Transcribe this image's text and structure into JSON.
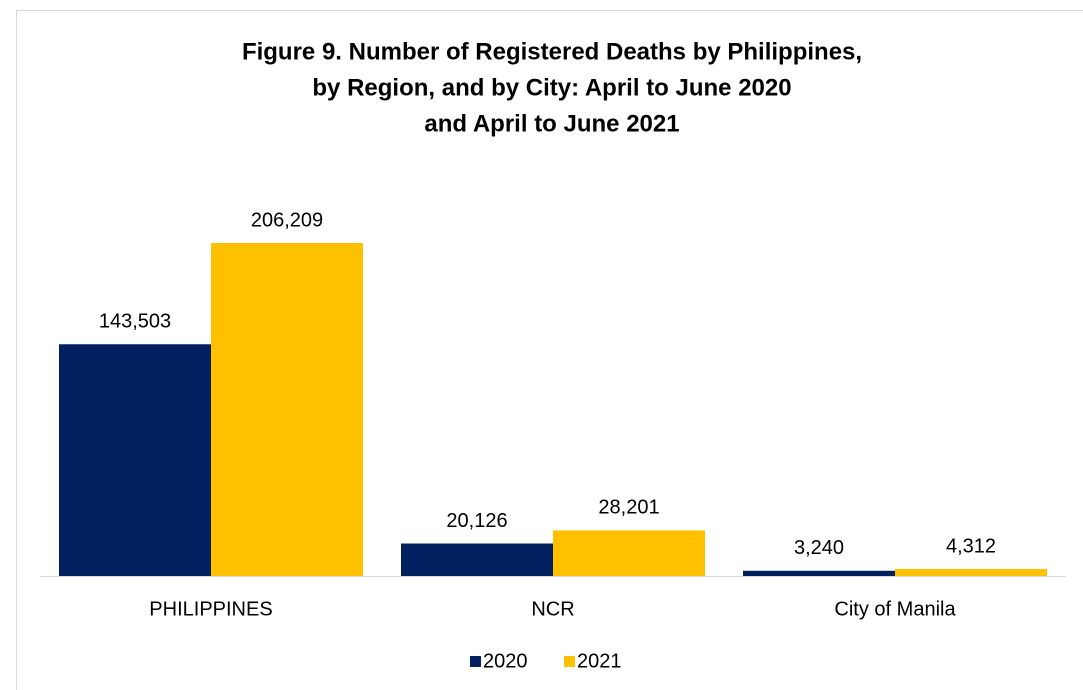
{
  "chart_data": {
    "type": "bar",
    "title": [
      "Figure 9. Number of Registered Deaths by Philippines,",
      "by Region, and by City: April to June 2020",
      "and April to June 2021"
    ],
    "categories": [
      "PHILIPPINES",
      "NCR",
      "City of Manila"
    ],
    "series": [
      {
        "name": "2020",
        "color": "#002060",
        "values": [
          143503,
          20126,
          3240
        ],
        "value_labels": [
          "143,503",
          "20,126",
          "3,240"
        ]
      },
      {
        "name": "2021",
        "color": "#ffc000",
        "values": [
          206209,
          28201,
          4312
        ],
        "value_labels": [
          "206,209",
          "28,201",
          "4,312"
        ]
      }
    ],
    "legend": "bottom"
  }
}
